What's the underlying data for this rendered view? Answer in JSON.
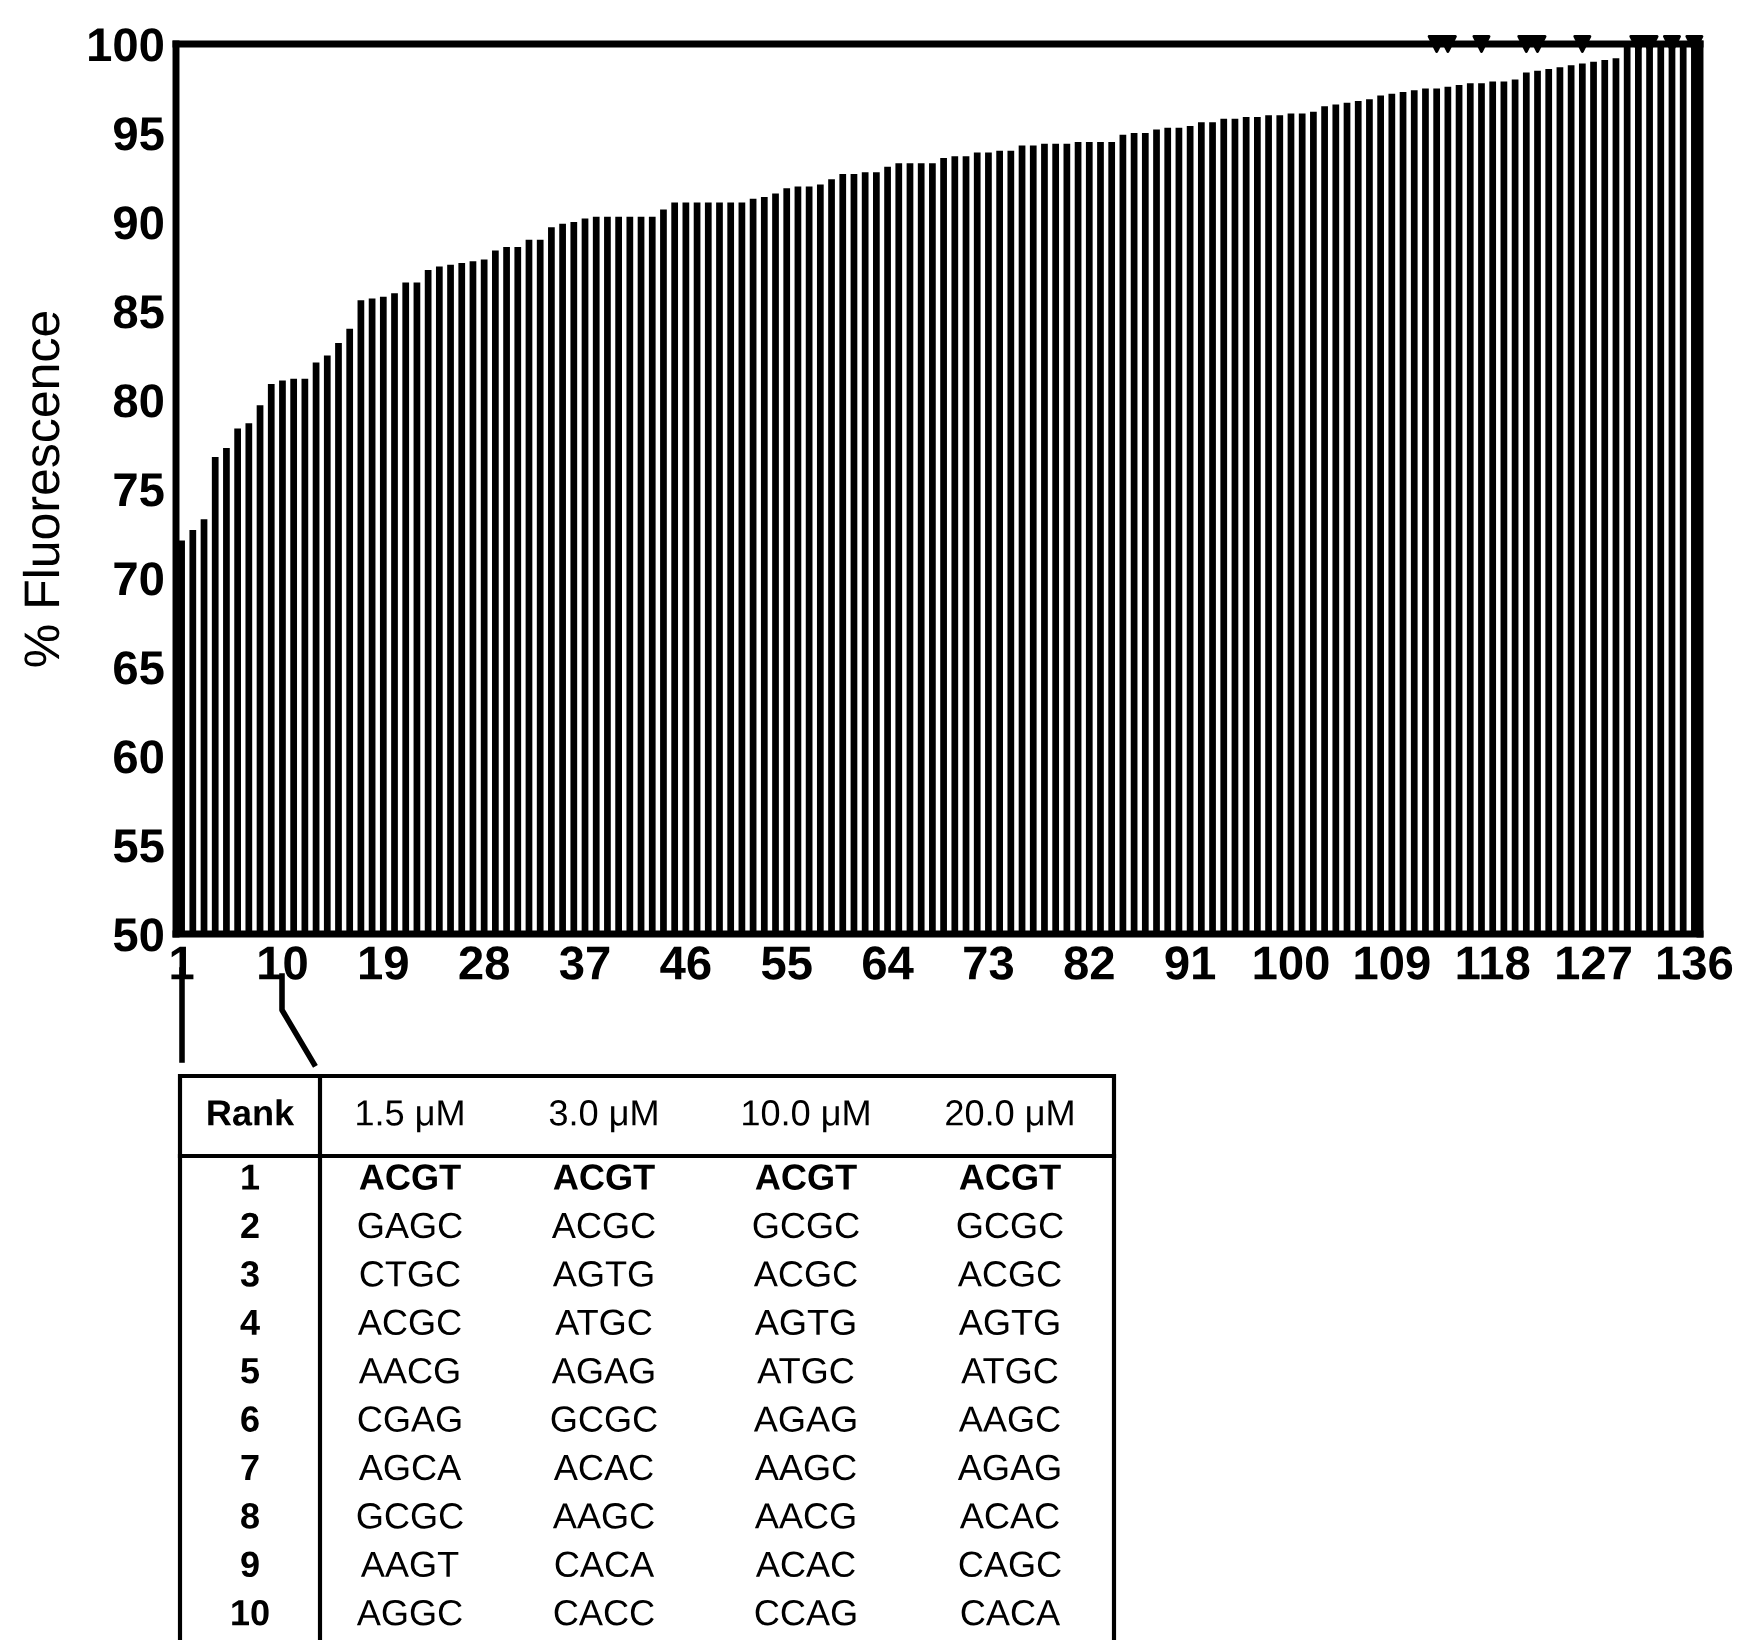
{
  "chart_data": {
    "type": "bar",
    "ylabel": "% Fluorescence",
    "color": "#000000",
    "x": [
      1,
      2,
      3,
      4,
      5,
      6,
      7,
      8,
      9,
      10,
      11,
      12,
      13,
      14,
      15,
      16,
      17,
      18,
      19,
      20,
      21,
      22,
      23,
      24,
      25,
      26,
      27,
      28,
      29,
      30,
      31,
      32,
      33,
      34,
      35,
      36,
      37,
      38,
      39,
      40,
      41,
      42,
      43,
      44,
      45,
      46,
      47,
      48,
      49,
      50,
      51,
      52,
      53,
      54,
      55,
      56,
      57,
      58,
      59,
      60,
      61,
      62,
      63,
      64,
      65,
      66,
      67,
      68,
      69,
      70,
      71,
      72,
      73,
      74,
      75,
      76,
      77,
      78,
      79,
      80,
      81,
      82,
      83,
      84,
      85,
      86,
      87,
      88,
      89,
      90,
      91,
      92,
      93,
      94,
      95,
      96,
      97,
      98,
      99,
      100,
      101,
      102,
      103,
      104,
      105,
      106,
      107,
      108,
      109,
      110,
      111,
      112,
      113,
      114,
      115,
      116,
      117,
      118,
      119,
      120,
      121,
      122,
      123,
      124,
      125,
      126,
      127,
      128,
      129,
      130,
      131,
      132,
      133,
      134,
      135,
      136
    ],
    "values": [
      72.1,
      72.7,
      73.3,
      76.8,
      77.3,
      78.4,
      78.7,
      79.7,
      80.9,
      81.1,
      81.2,
      81.2,
      82.1,
      82.5,
      83.2,
      84.0,
      85.6,
      85.7,
      85.8,
      86.0,
      86.6,
      86.6,
      87.3,
      87.5,
      87.6,
      87.7,
      87.8,
      87.9,
      88.4,
      88.6,
      88.6,
      89.0,
      89.0,
      89.7,
      89.9,
      90.0,
      90.2,
      90.3,
      90.3,
      90.3,
      90.3,
      90.3,
      90.3,
      90.7,
      91.1,
      91.1,
      91.1,
      91.1,
      91.1,
      91.1,
      91.1,
      91.3,
      91.4,
      91.6,
      91.9,
      92.0,
      92.0,
      92.1,
      92.4,
      92.7,
      92.7,
      92.8,
      92.8,
      93.1,
      93.3,
      93.3,
      93.3,
      93.3,
      93.6,
      93.7,
      93.7,
      93.9,
      93.9,
      94.0,
      94.0,
      94.3,
      94.3,
      94.4,
      94.4,
      94.4,
      94.5,
      94.5,
      94.5,
      94.5,
      94.9,
      95.0,
      95.0,
      95.2,
      95.3,
      95.3,
      95.4,
      95.6,
      95.6,
      95.8,
      95.8,
      95.9,
      95.9,
      96.0,
      96.0,
      96.1,
      96.1,
      96.2,
      96.5,
      96.6,
      96.7,
      96.8,
      96.9,
      97.1,
      97.2,
      97.3,
      97.4,
      97.5,
      97.5,
      97.6,
      97.7,
      97.8,
      97.8,
      97.9,
      97.9,
      98.0,
      98.4,
      98.5,
      98.6,
      98.7,
      98.8,
      98.9,
      99.0,
      99.1,
      99.2,
      100,
      100,
      100,
      100,
      100,
      100,
      100
    ],
    "xlim": [
      0.5,
      136.5
    ],
    "xticks": [
      1,
      10,
      19,
      28,
      37,
      46,
      55,
      64,
      73,
      82,
      91,
      100,
      109,
      118,
      127,
      136
    ],
    "ylim": [
      50,
      100
    ],
    "yticks": [
      50,
      55,
      60,
      65,
      70,
      75,
      80,
      85,
      90,
      95,
      100
    ],
    "grid": false,
    "legend": false,
    "series": [
      {
        "type": "scatter",
        "marker": "triangle",
        "color": "#000000",
        "x": [
          113,
          114,
          117,
          121,
          122,
          126,
          131,
          132,
          134,
          136
        ],
        "values": [
          100,
          100,
          100,
          100,
          100,
          100,
          100,
          100,
          100,
          100
        ]
      }
    ],
    "annotations": [
      "Rank",
      "1.5 μM",
      "3.0 μM",
      "10.0 μM",
      "20.0 μM",
      "1",
      "ACGT",
      "ACGT",
      "ACGT",
      "ACGT",
      "2",
      "GAGC",
      "ACGC",
      "GCGC",
      "GCGC",
      "3",
      "CTGC",
      "AGTG",
      "ACGC",
      "ACGC",
      "4",
      "ACGC",
      "ATGC",
      "AGTG",
      "AGTG",
      "5",
      "AACG",
      "AGAG",
      "ATGC",
      "ATGC",
      "6",
      "CGAG",
      "GCGC",
      "AGAG",
      "AAGC",
      "7",
      "AGCA",
      "ACAC",
      "AAGC",
      "AGAG",
      "8",
      "GCGC",
      "AAGC",
      "AACG",
      "ACAC",
      "9",
      "AAGT",
      "CACA",
      "ACAC",
      "CAGC",
      "10",
      "AGGC",
      "CACC",
      "CCAG",
      "CACA"
    ]
  }
}
